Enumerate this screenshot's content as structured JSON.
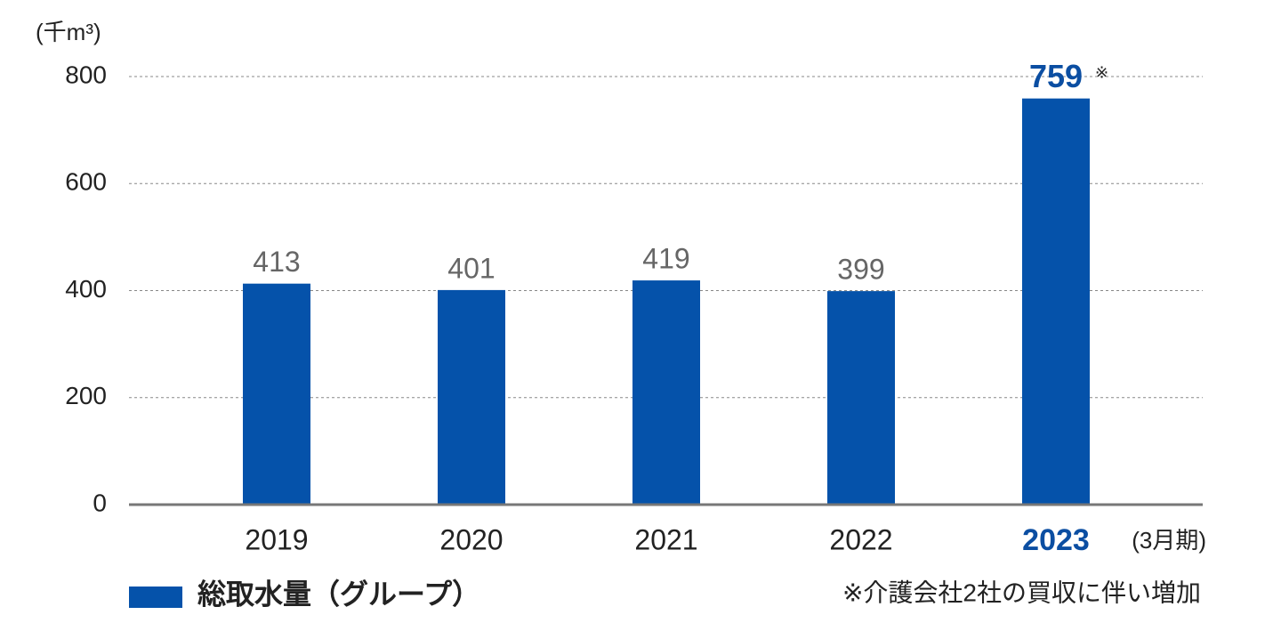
{
  "chart_data": {
    "type": "bar",
    "y_axis_label": "(千m³)",
    "categories": [
      "2019",
      "2020",
      "2021",
      "2022",
      "2023"
    ],
    "category_suffix": "(3月期)",
    "series": [
      {
        "name": "総取水量（グループ）",
        "color": "#0552aa",
        "values": [
          413,
          401,
          419,
          399,
          759
        ]
      }
    ],
    "highlight_index": 4,
    "highlight_color": "#0b4ea2",
    "highlight_note": "※",
    "footnote": "※介護会社2社の買収に伴い増加",
    "ylim": [
      0,
      800
    ],
    "yticks": [
      0,
      200,
      400,
      600,
      800
    ],
    "grid": true
  }
}
